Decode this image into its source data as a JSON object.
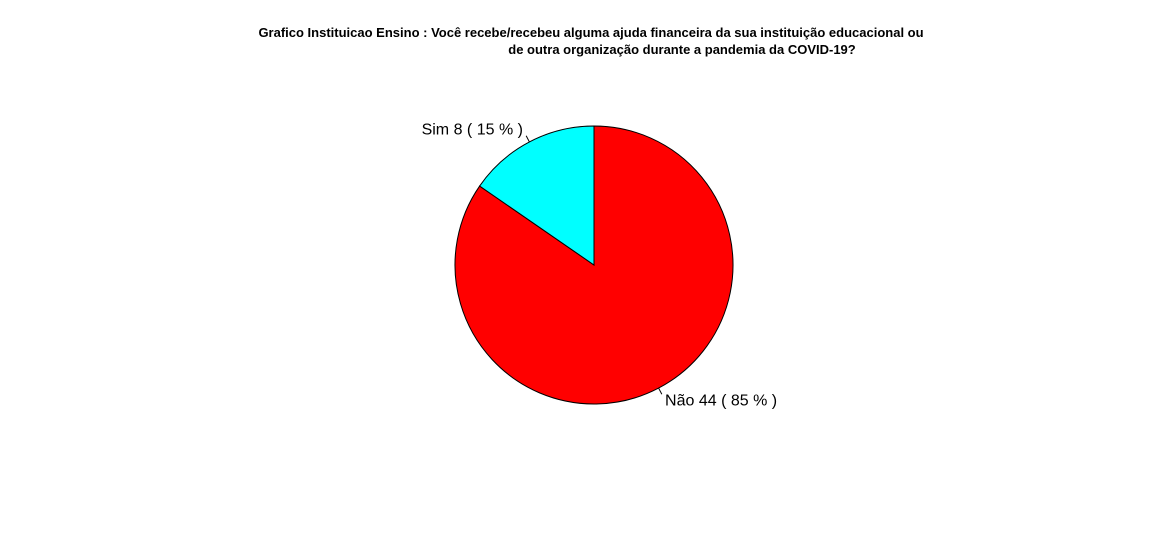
{
  "chart_data": {
    "type": "pie",
    "title": [
      "Grafico Instituicao Ensino : Você recebe/recebeu alguma ajuda financeira da sua instituição educacional ou",
      "de outra organização durante a pandemia da COVID-19?"
    ],
    "slices": [
      {
        "label": "Não",
        "value": 44,
        "percent": 85,
        "color": "#ff0000",
        "text": "Não   44 ( 85 % )"
      },
      {
        "label": "Sim",
        "value": 8,
        "percent": 15,
        "color": "#00ffff",
        "text": "Sim   8 ( 15 % )"
      }
    ],
    "start": "12 o'clock",
    "direction": "clockwise"
  }
}
